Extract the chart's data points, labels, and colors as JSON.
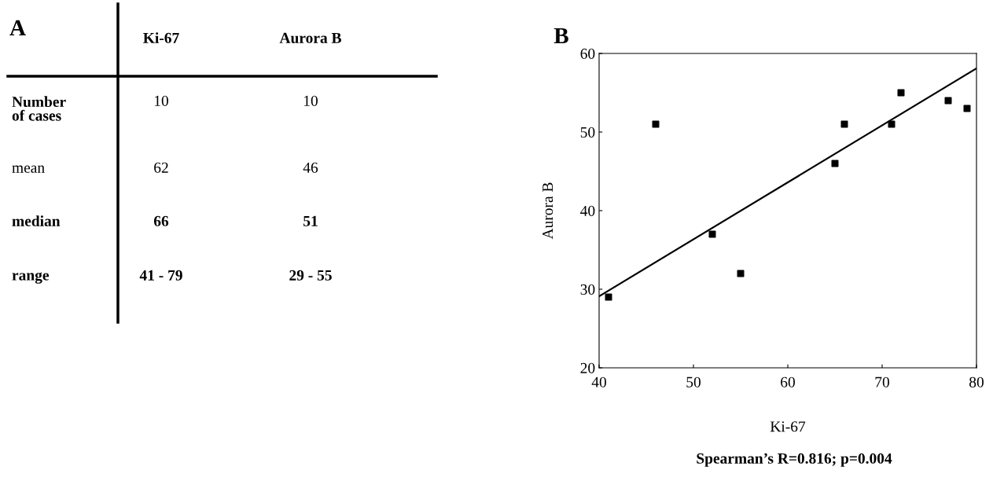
{
  "chart_data": [
    {
      "type": "other",
      "title": "A",
      "categories": [
        "Ki-67",
        "Aurora B"
      ],
      "y_categories": [
        "Number\nof cases",
        "mean",
        "median",
        "range"
      ],
      "cell_labels": [
        [
          "10",
          "10"
        ],
        [
          "62",
          "46"
        ],
        [
          "66",
          "51"
        ],
        [
          "41 - 79",
          "29 - 55"
        ]
      ]
    },
    {
      "type": "scatter",
      "title": "B",
      "xlabel": "Ki-67",
      "ylabel": "Aurora B",
      "xlim": [
        40,
        80
      ],
      "ylim": [
        20,
        60
      ],
      "xticks": [
        40,
        50,
        60,
        70,
        80
      ],
      "yticks": [
        20,
        30,
        40,
        50,
        60
      ],
      "grid": false,
      "legend": false,
      "annotations": [
        "Spearman’s R=0.816; p=0.004"
      ],
      "series": [
        {
          "type": "scatter",
          "marker": "square",
          "color": "#000000",
          "x": [
            41,
            46,
            52,
            55,
            65,
            66,
            71,
            72,
            77,
            79
          ],
          "values": [
            29,
            51,
            37,
            32,
            46,
            51,
            51,
            55,
            54,
            53
          ]
        },
        {
          "type": "line",
          "color": "#000000",
          "x": [
            40,
            80
          ],
          "values": [
            29.1,
            58.1
          ]
        }
      ]
    }
  ]
}
